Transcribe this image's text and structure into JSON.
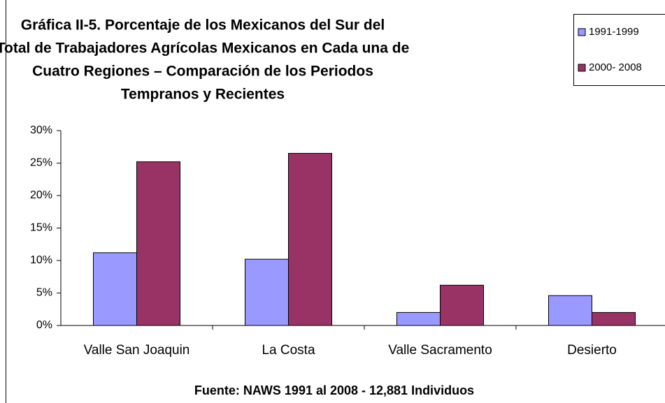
{
  "chart_data": {
    "type": "bar",
    "title": [
      "Gráfica II-5. Porcentaje de los Mexicanos del Sur del",
      "Total de Trabajadores Agrícolas Mexicanos en Cada una de",
      "Cuatro Regiones – Comparación de los Periodos",
      "Tempranos y Recientes"
    ],
    "source": "Fuente: NAWS 1991 al 2008 - 12,881 Individuos",
    "categories": [
      "Valle San Joaquin",
      "La Costa",
      "Valle Sacramento",
      "Desierto"
    ],
    "series": [
      {
        "name": "1991-1999",
        "color": "#9999ff",
        "values": [
          11.2,
          10.2,
          2.0,
          4.6
        ]
      },
      {
        "name": "2000- 2008",
        "color": "#993366",
        "values": [
          25.2,
          26.5,
          6.2,
          2.0
        ]
      }
    ],
    "ylim": [
      0,
      30
    ],
    "yticks": [
      {
        "value": 0,
        "label": "0%"
      },
      {
        "value": 5,
        "label": "5%"
      },
      {
        "value": 10,
        "label": "10%"
      },
      {
        "value": 15,
        "label": "15%"
      },
      {
        "value": 20,
        "label": "20%"
      },
      {
        "value": 25,
        "label": "25%"
      },
      {
        "value": 30,
        "label": "30%"
      }
    ],
    "legend": "upper right",
    "grid": false
  }
}
